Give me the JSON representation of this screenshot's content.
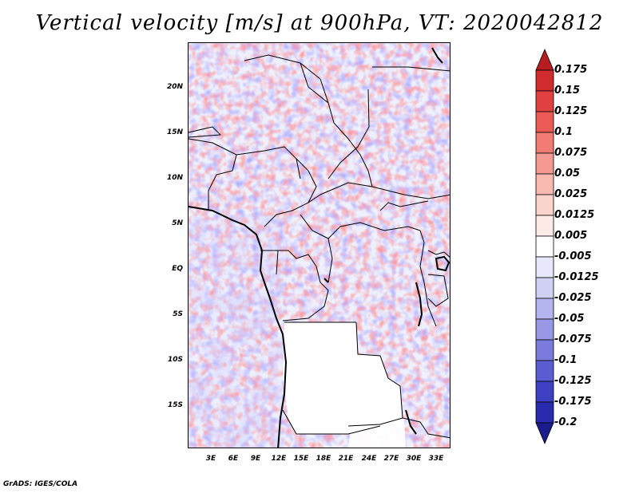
{
  "title": "Vertical velocity [m/s] at 900hPa, VT: 2020042812",
  "footer": "GrADS: IGES/COLA",
  "y_axis": {
    "ticks": [
      "20N",
      "15N",
      "10N",
      "5N",
      "EQ",
      "5S",
      "10S",
      "15S"
    ]
  },
  "x_axis": {
    "ticks": [
      "3E",
      "6E",
      "9E",
      "12E",
      "15E",
      "18E",
      "21E",
      "24E",
      "27E",
      "30E",
      "33E"
    ]
  },
  "colorbar": {
    "labels": [
      "0.175",
      "0.15",
      "0.125",
      "0.1",
      "0.075",
      "0.05",
      "0.025",
      "0.0125",
      "0.005",
      "-0.005",
      "-0.0125",
      "-0.025",
      "-0.05",
      "-0.075",
      "-0.1",
      "-0.125",
      "-0.175",
      "-0.2"
    ],
    "colors": [
      "#b51d20",
      "#d02b2d",
      "#e04040",
      "#ec5a55",
      "#f27b74",
      "#f59a92",
      "#f8b9b1",
      "#fbd3cd",
      "#fdebe8",
      "#ffffff",
      "#e8e8fb",
      "#d0d0f5",
      "#b4b4ee",
      "#9898e6",
      "#7b7bdd",
      "#5c5cd2",
      "#3f3fc2",
      "#2a2aae",
      "#1c1a8f"
    ]
  }
}
